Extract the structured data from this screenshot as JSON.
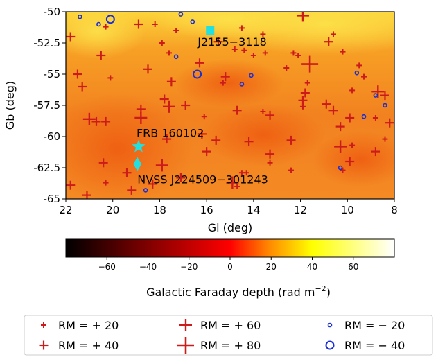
{
  "chart_data": {
    "type": "scatter",
    "xlabel": "Gl (deg)",
    "ylabel": "Gb (deg)",
    "xlim": [
      22,
      8
    ],
    "ylim": [
      -65,
      -50
    ],
    "x_ticks": [
      22,
      20,
      18,
      16,
      14,
      12,
      10,
      8
    ],
    "y_ticks": [
      -50,
      -52.5,
      -55,
      -57.5,
      -60,
      -62.5,
      -65
    ],
    "x_tick_labels": [
      "22",
      "20",
      "18",
      "16",
      "14",
      "12",
      "10",
      "8"
    ],
    "y_tick_labels": [
      "-50",
      "-52.5",
      "-55",
      "-57.5",
      "-60",
      "-62.5",
      "-65"
    ],
    "background": "heatmap of Galactic Faraday depth",
    "colorbar": {
      "label": "Galactic Faraday depth (rad m",
      "label_sup": "−2",
      "label_end": ")",
      "colormap": "afmhot",
      "range": [
        -80,
        80
      ],
      "ticks": [
        -60,
        -40,
        -20,
        0,
        20,
        40,
        60
      ],
      "tick_labels": [
        "−60",
        "−40",
        "−20",
        "0",
        "20",
        "40",
        "60"
      ]
    },
    "annotations": [
      {
        "text": "J2155−3118",
        "x": 15.85,
        "y": -51.5,
        "marker": "square",
        "color": "#22e0e0"
      },
      {
        "text": "FRB 160102",
        "x": 18.9,
        "y": -60.8,
        "marker": "star",
        "color": "#22e0e0"
      },
      {
        "text": "NVSS J224509−301243",
        "x": 18.95,
        "y": -62.2,
        "marker": "diamond",
        "color": "#22e0e0"
      }
    ],
    "positive_rm_sources": [
      {
        "x": 21.8,
        "y": -52.0,
        "rm": 40
      },
      {
        "x": 20.3,
        "y": -51.2,
        "rm": 20
      },
      {
        "x": 20.5,
        "y": -53.5,
        "rm": 40
      },
      {
        "x": 21.5,
        "y": -55.0,
        "rm": 40
      },
      {
        "x": 21.3,
        "y": -56.0,
        "rm": 40
      },
      {
        "x": 20.1,
        "y": -55.3,
        "rm": 20
      },
      {
        "x": 18.9,
        "y": -51.0,
        "rm": 40
      },
      {
        "x": 18.2,
        "y": -51.0,
        "rm": 20
      },
      {
        "x": 17.9,
        "y": -52.5,
        "rm": 20
      },
      {
        "x": 17.6,
        "y": -53.3,
        "rm": 20
      },
      {
        "x": 17.3,
        "y": -51.5,
        "rm": 20
      },
      {
        "x": 17.5,
        "y": -55.6,
        "rm": 40
      },
      {
        "x": 18.5,
        "y": -54.6,
        "rm": 40
      },
      {
        "x": 17.8,
        "y": -57.0,
        "rm": 40
      },
      {
        "x": 18.8,
        "y": -57.8,
        "rm": 40
      },
      {
        "x": 18.8,
        "y": -58.5,
        "rm": 60
      },
      {
        "x": 20.7,
        "y": -58.8,
        "rm": 40
      },
      {
        "x": 20.3,
        "y": -58.8,
        "rm": 40
      },
      {
        "x": 21.0,
        "y": -58.6,
        "rm": 60
      },
      {
        "x": 17.6,
        "y": -57.6,
        "rm": 60
      },
      {
        "x": 16.9,
        "y": -57.5,
        "rm": 40
      },
      {
        "x": 16.3,
        "y": -54.1,
        "rm": 40
      },
      {
        "x": 15.5,
        "y": -52.4,
        "rm": 40
      },
      {
        "x": 15.2,
        "y": -55.2,
        "rm": 40
      },
      {
        "x": 15.3,
        "y": -55.7,
        "rm": 20
      },
      {
        "x": 14.8,
        "y": -53.0,
        "rm": 20
      },
      {
        "x": 14.5,
        "y": -51.3,
        "rm": 20
      },
      {
        "x": 14.4,
        "y": -53.1,
        "rm": 20
      },
      {
        "x": 13.6,
        "y": -51.8,
        "rm": 20
      },
      {
        "x": 13.5,
        "y": -53.3,
        "rm": 20
      },
      {
        "x": 14.0,
        "y": -53.5,
        "rm": 20
      },
      {
        "x": 12.3,
        "y": -53.3,
        "rm": 20
      },
      {
        "x": 12.1,
        "y": -53.5,
        "rm": 20
      },
      {
        "x": 11.9,
        "y": -50.3,
        "rm": 60
      },
      {
        "x": 10.6,
        "y": -51.8,
        "rm": 20
      },
      {
        "x": 10.8,
        "y": -52.4,
        "rm": 40
      },
      {
        "x": 10.2,
        "y": -53.2,
        "rm": 20
      },
      {
        "x": 9.5,
        "y": -54.3,
        "rm": 20
      },
      {
        "x": 11.6,
        "y": -54.2,
        "rm": 80
      },
      {
        "x": 12.6,
        "y": -54.5,
        "rm": 20
      },
      {
        "x": 11.7,
        "y": -55.7,
        "rm": 20
      },
      {
        "x": 9.8,
        "y": -56.3,
        "rm": 20
      },
      {
        "x": 8.7,
        "y": -56.4,
        "rm": 60
      },
      {
        "x": 8.4,
        "y": -56.7,
        "rm": 40
      },
      {
        "x": 9.3,
        "y": -55.2,
        "rm": 20
      },
      {
        "x": 11.8,
        "y": -56.5,
        "rm": 40
      },
      {
        "x": 11.9,
        "y": -57.1,
        "rm": 40
      },
      {
        "x": 11.9,
        "y": -57.6,
        "rm": 20
      },
      {
        "x": 10.9,
        "y": -57.4,
        "rm": 40
      },
      {
        "x": 10.6,
        "y": -57.9,
        "rm": 40
      },
      {
        "x": 9.9,
        "y": -58.5,
        "rm": 40
      },
      {
        "x": 10.3,
        "y": -59.2,
        "rm": 40
      },
      {
        "x": 8.8,
        "y": -58.5,
        "rm": 20
      },
      {
        "x": 8.2,
        "y": -58.9,
        "rm": 40
      },
      {
        "x": 8.4,
        "y": -60.2,
        "rm": 20
      },
      {
        "x": 8.8,
        "y": -61.2,
        "rm": 40
      },
      {
        "x": 9.8,
        "y": -60.7,
        "rm": 20
      },
      {
        "x": 10.3,
        "y": -60.8,
        "rm": 60
      },
      {
        "x": 9.9,
        "y": -62.0,
        "rm": 40
      },
      {
        "x": 10.2,
        "y": -62.7,
        "rm": 20
      },
      {
        "x": 12.4,
        "y": -60.3,
        "rm": 40
      },
      {
        "x": 13.3,
        "y": -58.3,
        "rm": 40
      },
      {
        "x": 13.6,
        "y": -58.0,
        "rm": 20
      },
      {
        "x": 14.7,
        "y": -57.9,
        "rm": 40
      },
      {
        "x": 14.2,
        "y": -60.4,
        "rm": 40
      },
      {
        "x": 13.3,
        "y": -61.4,
        "rm": 40
      },
      {
        "x": 12.4,
        "y": -62.7,
        "rm": 20
      },
      {
        "x": 13.3,
        "y": -62.1,
        "rm": 20
      },
      {
        "x": 14.7,
        "y": -64.0,
        "rm": 20
      },
      {
        "x": 14.9,
        "y": -63.7,
        "rm": 60
      },
      {
        "x": 14.5,
        "y": -62.9,
        "rm": 20
      },
      {
        "x": 14.3,
        "y": -62.9,
        "rm": 20
      },
      {
        "x": 15.6,
        "y": -60.3,
        "rm": 40
      },
      {
        "x": 16.1,
        "y": -58.4,
        "rm": 20
      },
      {
        "x": 16.2,
        "y": -59.8,
        "rm": 40
      },
      {
        "x": 17.7,
        "y": -60.2,
        "rm": 40
      },
      {
        "x": 17.9,
        "y": -62.3,
        "rm": 60
      },
      {
        "x": 17.1,
        "y": -63.3,
        "rm": 40
      },
      {
        "x": 18.3,
        "y": -63.8,
        "rm": 40
      },
      {
        "x": 19.4,
        "y": -62.9,
        "rm": 40
      },
      {
        "x": 20.4,
        "y": -62.1,
        "rm": 40
      },
      {
        "x": 20.3,
        "y": -63.7,
        "rm": 20
      },
      {
        "x": 21.8,
        "y": -63.9,
        "rm": 40
      },
      {
        "x": 21.1,
        "y": -64.7,
        "rm": 40
      },
      {
        "x": 19.2,
        "y": -64.3,
        "rm": 40
      },
      {
        "x": 16.0,
        "y": -61.2,
        "rm": 40
      }
    ],
    "negative_rm_sources": [
      {
        "x": 21.4,
        "y": -50.4,
        "rm": -20
      },
      {
        "x": 20.6,
        "y": -51.0,
        "rm": -20
      },
      {
        "x": 20.1,
        "y": -50.6,
        "rm": -40
      },
      {
        "x": 17.1,
        "y": -50.2,
        "rm": -20
      },
      {
        "x": 16.6,
        "y": -50.8,
        "rm": -20
      },
      {
        "x": 17.3,
        "y": -53.6,
        "rm": -20
      },
      {
        "x": 16.4,
        "y": -55.0,
        "rm": -40
      },
      {
        "x": 14.5,
        "y": -55.8,
        "rm": -20
      },
      {
        "x": 14.1,
        "y": -55.1,
        "rm": -20
      },
      {
        "x": 9.6,
        "y": -54.9,
        "rm": -20
      },
      {
        "x": 8.8,
        "y": -56.7,
        "rm": -20
      },
      {
        "x": 8.4,
        "y": -57.5,
        "rm": -20
      },
      {
        "x": 9.3,
        "y": -58.4,
        "rm": -20
      },
      {
        "x": 10.3,
        "y": -62.5,
        "rm": -20
      },
      {
        "x": 18.6,
        "y": -64.3,
        "rm": -20
      }
    ]
  },
  "legend": {
    "entries": [
      {
        "label": "RM  = + 20",
        "sign": "positive",
        "rm": 20
      },
      {
        "label": "RM  = + 40",
        "sign": "positive",
        "rm": 40
      },
      {
        "label": "RM  = + 60",
        "sign": "positive",
        "rm": 60
      },
      {
        "label": "RM  = + 80",
        "sign": "positive",
        "rm": 80
      },
      {
        "label": "RM  = − 20",
        "sign": "negative",
        "rm": -20
      },
      {
        "label": "RM  = − 40",
        "sign": "negative",
        "rm": -40
      }
    ]
  },
  "colors": {
    "positive_marker": "#cc1b1b",
    "negative_marker": "#1a2fd4",
    "annotation_marker": "#22e0e0"
  }
}
